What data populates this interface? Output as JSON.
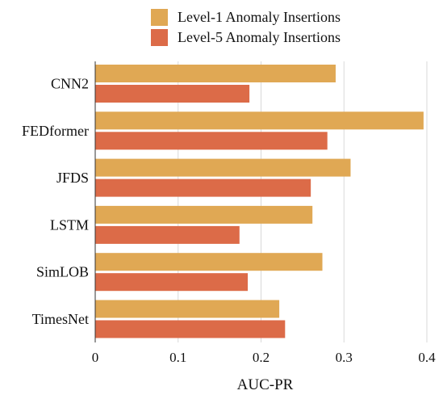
{
  "chart_data": {
    "type": "bar",
    "orientation": "horizontal",
    "categories": [
      "CNN2",
      "FEDformer",
      "JFDS",
      "LSTM",
      "SimLOB",
      "TimesNet"
    ],
    "series": [
      {
        "name": "Level-1 Anomaly Insertions",
        "color": "#E0A854",
        "values": [
          0.29,
          0.396,
          0.308,
          0.262,
          0.274,
          0.222
        ]
      },
      {
        "name": "Level-5 Anomaly Insertions",
        "color": "#DC6B48",
        "values": [
          0.186,
          0.28,
          0.26,
          0.174,
          0.184,
          0.229
        ]
      }
    ],
    "xlabel": "AUC-PR",
    "ylabel": "",
    "xlim": [
      0,
      0.4
    ],
    "xticks": [
      0,
      0.1,
      0.2,
      0.3,
      0.4
    ],
    "xtick_labels": [
      "0",
      "0.1",
      "0.2",
      "0.3",
      "0.4"
    ],
    "grid": "vertical",
    "legend_position": "top"
  }
}
